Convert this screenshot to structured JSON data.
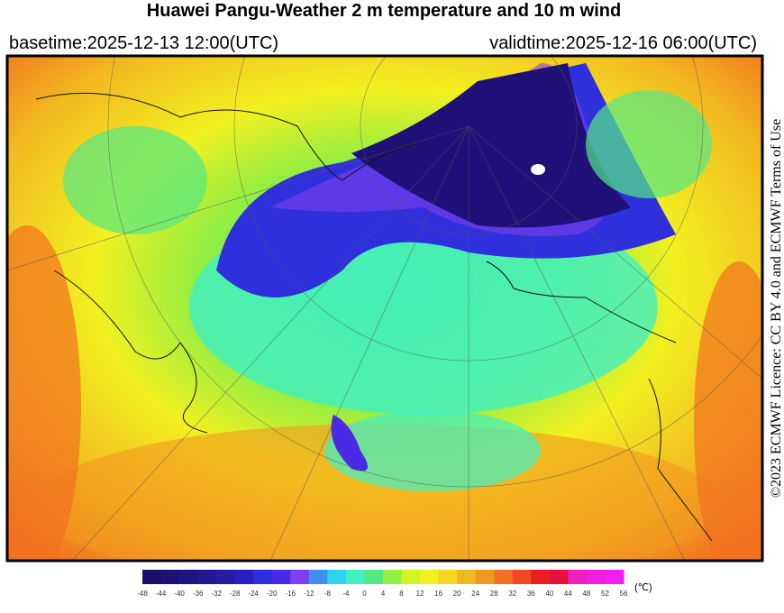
{
  "header": {
    "title": "Huawei Pangu-Weather  2 m temperature and 10 m wind",
    "basetime": "basetime:2025-12-13 12:00(UTC)",
    "validtime": "validtime:2025-12-16 06:00(UTC)"
  },
  "license": "©2023 ECMWF Licence: CC BY 4.0 and ECMWF Terms of Use",
  "colorbar": {
    "unit": "(℃)",
    "ticks": [
      -48,
      -44,
      -40,
      -36,
      -32,
      -28,
      -24,
      -20,
      -16,
      -12,
      -8,
      -4,
      0,
      4,
      8,
      12,
      16,
      20,
      24,
      28,
      32,
      36,
      40,
      44,
      48,
      52,
      56
    ],
    "colors": [
      "#1c0f6a",
      "#1f1178",
      "#211485",
      "#231893",
      "#281ca3",
      "#2b20bd",
      "#2f30dc",
      "#4a2ae6",
      "#7e40ef",
      "#3f8ff0",
      "#30d2f2",
      "#40f0c4",
      "#52e884",
      "#92ee42",
      "#d2f224",
      "#f2f020",
      "#f2d820",
      "#f2b820",
      "#f29820",
      "#f27020",
      "#f04820",
      "#e82020",
      "#e81040",
      "#f020c0",
      "#f020e0",
      "#f020f4"
    ]
  }
}
